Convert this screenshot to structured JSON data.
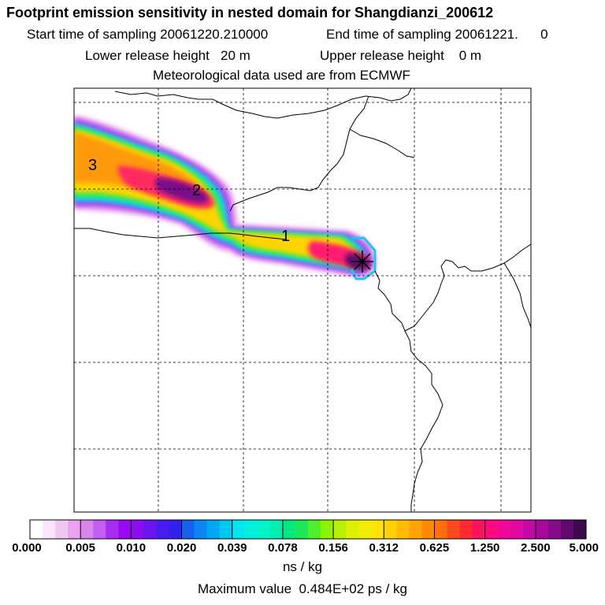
{
  "header": {
    "title": "Footprint emission sensitivity in nested domain for Shangdianzi_200612",
    "start_sampling": "Start time of sampling 20061220.210000",
    "end_sampling": "End time of sampling 20061221.      0",
    "lower_release": "Lower release height   20 m",
    "upper_release": "Upper release height    0 m",
    "met_data": "Meteorological data used are from ECMWF"
  },
  "map": {
    "contour_labels": [
      "3",
      "2",
      "1"
    ],
    "colors": {
      "border": "#000000",
      "grid": "#000000"
    }
  },
  "colorbar": {
    "tick_labels": [
      "0.000",
      "0.005",
      "0.010",
      "0.020",
      "0.039",
      "0.078",
      "0.156",
      "0.312",
      "0.625",
      "1.250",
      "2.500",
      "5.000"
    ],
    "segment_colors": [
      "#ffffff",
      "#fbe6fb",
      "#f4c6f4",
      "#eca2f0",
      "#d985ee",
      "#c25ff0",
      "#a52cf2",
      "#9a0af0",
      "#8a0ef0",
      "#6a14f0",
      "#4b1bf2",
      "#3022ec",
      "#1860f0",
      "#0c86f2",
      "#00a8f4",
      "#00c8f2",
      "#00e6ee",
      "#00f2e0",
      "#00f4c8",
      "#00eeb2",
      "#00e880",
      "#1ee85a",
      "#4ef02a",
      "#8cf400",
      "#b8f000",
      "#dcf000",
      "#f2ee00",
      "#ffe400",
      "#ffd200",
      "#ffbc00",
      "#ffa400",
      "#ff8a00",
      "#ff6e10",
      "#ff4a20",
      "#ff2a30",
      "#ff1060",
      "#ff0880",
      "#f20898",
      "#e008a0",
      "#c808a6",
      "#a8089c",
      "#860a8c",
      "#620a70",
      "#3e0a4e"
    ],
    "unit": "ns / kg"
  },
  "footer": {
    "max_value": "Maximum value  0.484E+02 ps / kg"
  }
}
